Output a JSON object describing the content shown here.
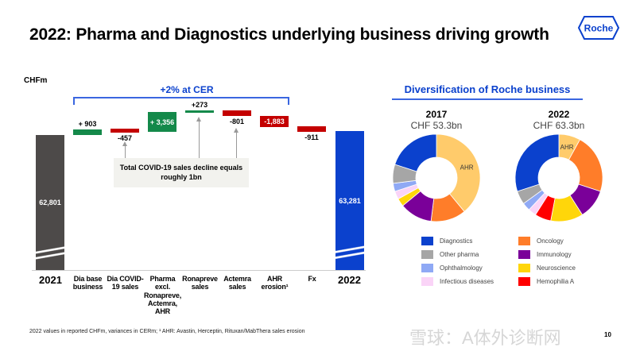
{
  "header": {
    "title": "2022: Pharma and Diagnostics underlying business driving growth",
    "logo": "Roche"
  },
  "chart_data": [
    {
      "type": "waterfall",
      "ylabel": "CHFm",
      "annotation": "+2% at CER",
      "note": "Total COVID-19 sales decline equals roughly 1bn",
      "categories": [
        "2021",
        "Dia base business",
        "Dia COVID-19 sales",
        "Pharma excl. Ronapreve, Actemra, AHR",
        "Ronapreve sales",
        "Actemra sales",
        "AHR erosion¹",
        "Fx",
        "2022"
      ],
      "values": [
        62801,
        903,
        -457,
        3356,
        273,
        -801,
        -1883,
        -911,
        63281
      ],
      "labels": [
        "62,801",
        "+ 903",
        "-457",
        "+ 3,356",
        "+273",
        "-801",
        "-1,883",
        "-911",
        "63,281"
      ],
      "colors": {
        "start": "#4d4a49",
        "increase": "#14894a",
        "decrease": "#c40000",
        "end": "#0b41cd"
      },
      "broken_axis": true
    },
    {
      "type": "pie",
      "title": "Diversification of Roche business",
      "donuts": [
        {
          "year": "2017",
          "total": "CHF 53.3bn",
          "slices": [
            {
              "name": "AHR",
              "value": 0.39
            },
            {
              "name": "Oncology",
              "value": 0.13
            },
            {
              "name": "Immunology",
              "value": 0.12
            },
            {
              "name": "Neuroscience",
              "value": 0.03
            },
            {
              "name": "Infectious diseases",
              "value": 0.03
            },
            {
              "name": "Ophthalmology",
              "value": 0.03
            },
            {
              "name": "Other pharma",
              "value": 0.07
            },
            {
              "name": "Diagnostics",
              "value": 0.2
            }
          ]
        },
        {
          "year": "2022",
          "total": "CHF 63.3bn",
          "slices": [
            {
              "name": "AHR",
              "value": 0.08
            },
            {
              "name": "Oncology",
              "value": 0.22
            },
            {
              "name": "Immunology",
              "value": 0.11
            },
            {
              "name": "Neuroscience",
              "value": 0.12
            },
            {
              "name": "Hemophilia A",
              "value": 0.06
            },
            {
              "name": "Infectious diseases",
              "value": 0.03
            },
            {
              "name": "Ophthalmology",
              "value": 0.03
            },
            {
              "name": "Other pharma",
              "value": 0.05
            },
            {
              "name": "Diagnostics",
              "value": 0.3
            }
          ]
        }
      ],
      "slice_label": "AHR",
      "legend": [
        {
          "name": "Diagnostics",
          "color": "#0b41cd"
        },
        {
          "name": "Other pharma",
          "color": "#a6a6a6"
        },
        {
          "name": "Ophthalmology",
          "color": "#8fa9f5"
        },
        {
          "name": "Infectious diseases",
          "color": "#fad4f7"
        },
        {
          "name": "Oncology",
          "color": "#ff7d29"
        },
        {
          "name": "Immunology",
          "color": "#7a0099"
        },
        {
          "name": "Neuroscience",
          "color": "#ffd60a"
        },
        {
          "name": "Hemophilia A",
          "color": "#ff0000"
        }
      ],
      "colors": {
        "AHR": "#ffcb6b"
      }
    }
  ],
  "footer": {
    "note": "2022 values in reported CHFm, variances in CERm; ¹ AHR: Avastin, Herceptin, Rituxan/MabThera sales erosion",
    "page": "10",
    "watermark": "雪球：A体外诊断网"
  }
}
